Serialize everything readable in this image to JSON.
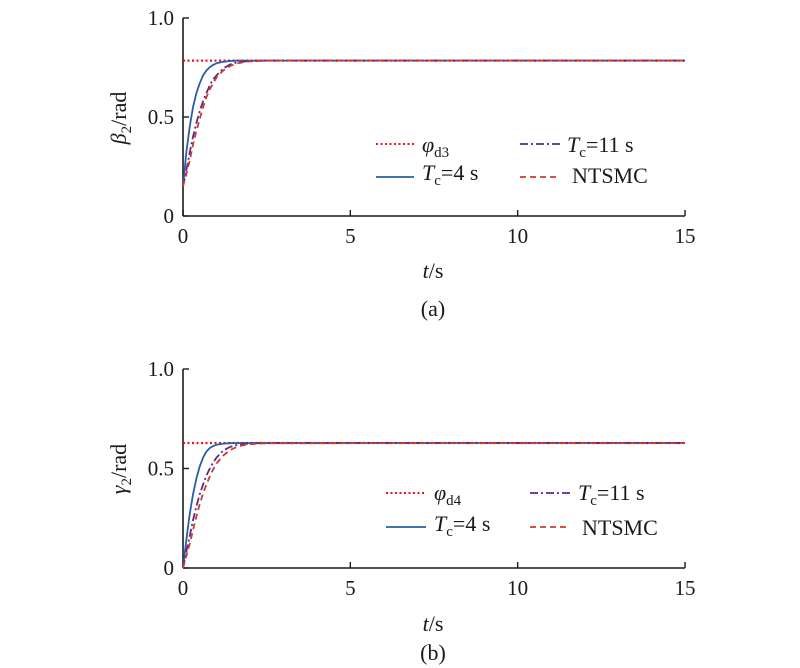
{
  "chart_data": [
    {
      "type": "line",
      "caption": "(a)",
      "ylabel_sym": "β",
      "ylabel_sub": "2",
      "ylabel_unit": "/rad",
      "xlabel_sym": "t",
      "xlabel_unit": "/s",
      "xlim": [
        0,
        15
      ],
      "ylim": [
        0,
        1.0
      ],
      "xticks": [
        "0",
        "5",
        "10",
        "15"
      ],
      "yticks": [
        "0",
        "0.5",
        "1.0"
      ],
      "grid": false,
      "legend_position": "center-right",
      "series": [
        {
          "name": "φ",
          "name_sub": "d3",
          "style": "dotted",
          "color": "#e8141c",
          "x": [
            0,
            15
          ],
          "y": [
            0.785,
            0.785
          ]
        },
        {
          "name": "T",
          "name_sub": "c",
          "name_suffix": "=4 s",
          "style": "solid",
          "color": "#2a5da8",
          "x": [
            0,
            0.1,
            0.2,
            0.3,
            0.4,
            0.5,
            0.6,
            0.7,
            0.8,
            0.9,
            1.0,
            1.2,
            1.4,
            1.6,
            2.0,
            15
          ],
          "y": [
            0.15,
            0.32,
            0.45,
            0.55,
            0.62,
            0.67,
            0.71,
            0.735,
            0.752,
            0.763,
            0.771,
            0.779,
            0.783,
            0.785,
            0.785,
            0.785
          ]
        },
        {
          "name": "T",
          "name_sub": "c",
          "name_suffix": "=11 s",
          "style": "dashdot",
          "color": "#5a2a8a",
          "x": [
            0,
            0.1,
            0.2,
            0.3,
            0.4,
            0.5,
            0.6,
            0.7,
            0.8,
            0.9,
            1.0,
            1.2,
            1.4,
            1.6,
            1.8,
            2.0,
            2.5,
            15
          ],
          "y": [
            0.15,
            0.23,
            0.32,
            0.4,
            0.47,
            0.53,
            0.58,
            0.62,
            0.66,
            0.69,
            0.71,
            0.745,
            0.765,
            0.775,
            0.78,
            0.783,
            0.785,
            0.785
          ]
        },
        {
          "name": "NTSMC",
          "style": "dashed",
          "color": "#d03a2a",
          "x": [
            0,
            0.1,
            0.2,
            0.3,
            0.4,
            0.5,
            0.6,
            0.7,
            0.8,
            0.9,
            1.0,
            1.2,
            1.4,
            1.6,
            1.8,
            2.0,
            2.5,
            15
          ],
          "y": [
            0.15,
            0.21,
            0.28,
            0.36,
            0.43,
            0.49,
            0.55,
            0.6,
            0.64,
            0.67,
            0.7,
            0.735,
            0.757,
            0.77,
            0.777,
            0.781,
            0.785,
            0.785
          ]
        }
      ]
    },
    {
      "type": "line",
      "caption": "(b)",
      "ylabel_sym": "γ",
      "ylabel_sub": "2",
      "ylabel_unit": "/rad",
      "xlabel_sym": "t",
      "xlabel_unit": "/s",
      "xlim": [
        0,
        15
      ],
      "ylim": [
        0,
        1.0
      ],
      "xticks": [
        "0",
        "5",
        "10",
        "15"
      ],
      "yticks": [
        "0",
        "0.5",
        "1.0"
      ],
      "grid": false,
      "legend_position": "center-right",
      "series": [
        {
          "name": "φ",
          "name_sub": "d4",
          "style": "dotted",
          "color": "#e8141c",
          "x": [
            0,
            15
          ],
          "y": [
            0.628,
            0.628
          ]
        },
        {
          "name": "T",
          "name_sub": "c",
          "name_suffix": "=4 s",
          "style": "solid",
          "color": "#2a5da8",
          "x": [
            0,
            0.1,
            0.2,
            0.3,
            0.4,
            0.5,
            0.6,
            0.7,
            0.8,
            0.9,
            1.0,
            1.2,
            1.4,
            1.6,
            2.0,
            15
          ],
          "y": [
            0.0,
            0.14,
            0.27,
            0.37,
            0.45,
            0.51,
            0.555,
            0.585,
            0.603,
            0.613,
            0.619,
            0.625,
            0.627,
            0.628,
            0.628,
            0.628
          ]
        },
        {
          "name": "T",
          "name_sub": "c",
          "name_suffix": "=11 s",
          "style": "dashdot",
          "color": "#5a2a8a",
          "x": [
            0,
            0.1,
            0.2,
            0.3,
            0.4,
            0.5,
            0.6,
            0.7,
            0.8,
            0.9,
            1.0,
            1.2,
            1.4,
            1.6,
            1.8,
            2.0,
            2.5,
            15
          ],
          "y": [
            0.0,
            0.08,
            0.16,
            0.24,
            0.31,
            0.37,
            0.42,
            0.465,
            0.5,
            0.53,
            0.555,
            0.59,
            0.608,
            0.618,
            0.623,
            0.626,
            0.628,
            0.628
          ]
        },
        {
          "name": "NTSMC",
          "style": "dashed",
          "color": "#d03a2a",
          "x": [
            0,
            0.1,
            0.2,
            0.3,
            0.4,
            0.5,
            0.6,
            0.7,
            0.8,
            0.9,
            1.0,
            1.2,
            1.4,
            1.6,
            1.8,
            2.0,
            2.5,
            15
          ],
          "y": [
            0.0,
            0.06,
            0.12,
            0.19,
            0.26,
            0.32,
            0.375,
            0.42,
            0.46,
            0.495,
            0.525,
            0.565,
            0.592,
            0.608,
            0.617,
            0.622,
            0.627,
            0.628
          ]
        }
      ]
    }
  ]
}
